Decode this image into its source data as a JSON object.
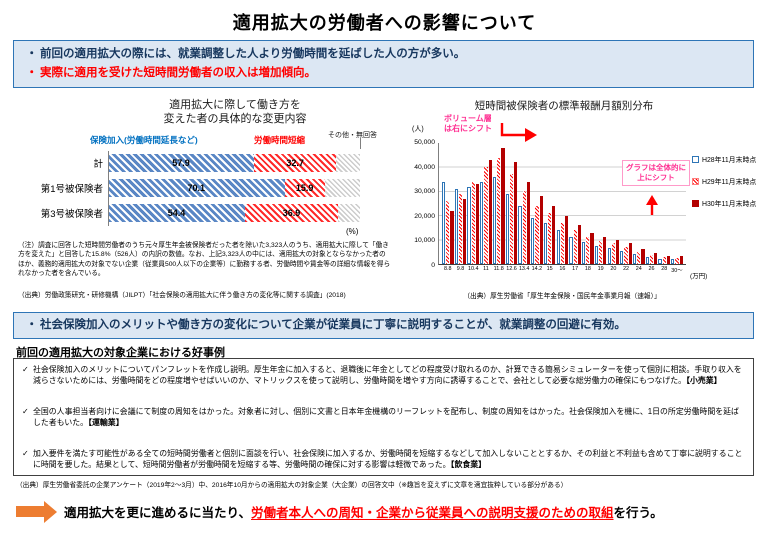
{
  "page": {
    "title": "適用拡大の労働者への影響について"
  },
  "colors": {
    "box_border_blue": "#2e75b6",
    "box_bg_blue": "#dce7f3",
    "accent_red": "#ff0000",
    "accent_blue": "#0070c0",
    "annotation_pink": "#ff2f92",
    "arrow_orange": "#ed7d31",
    "bar_dark_red": "#b30000"
  },
  "summary_box1": {
    "bullet1": "前回の適用拡大の際には、就業調整した人より労働時間を延ばした人の方が多い。",
    "bullet2": "実際に適用を受けた短時間労働者の収入は増加傾向。"
  },
  "left_chart": {
    "title_line1": "適用拡大に際して働き方を",
    "title_line2": "変えた者の具体的な変更内容",
    "legend_blue": "保険加入(労働時間延長など)",
    "legend_red": "労働時間短縮",
    "legend_other": "その他・無回答",
    "unit": "(%)",
    "note": "（注）調査に回答した短時間労働者のうち元々厚生年金被保険者だった者を除いた3,323人のうち、適用拡大に際して「働き方を変えた」と回答した15.8%（526人）の内訳の数値。なお、上記3,323人の中には、適用拡大の対象とならなかった者のほか、義務的適用拡大の対象でない企業（従業員500人以下の企業等）に勤務する者、労働時間や賃金等の詳細な情報を得られなかった者を含んでいる。",
    "source": "（出典）労働政策研究・研修機構（JILPT）「社会保険の適用拡大に伴う働き方の変化等に関する調査」(2018)"
  },
  "right_chart": {
    "title": "短時間被保険者の標準報酬月額別分布",
    "y_unit": "(人)",
    "x_unit": "(万円)",
    "ytick_labels": [
      "50,000",
      "40,000",
      "30,000",
      "20,000",
      "10,000",
      "0"
    ],
    "annotation1": "ボリューム層\nは右にシフト",
    "annotation2": "グラフは全体的に\n上にシフト",
    "source": "（出典）厚生労働省「厚生年金保険・国民年金事業月報（速報）」"
  },
  "summary_box2": {
    "bullet": "社会保険加入のメリットや働き方の変化について企業が従業員に丁寧に説明することが、就業調整の回避に有効。"
  },
  "examples": {
    "title": "前回の適用拡大の対象企業における好事例",
    "items": [
      {
        "text": "社会保険加入のメリットについてパンフレットを作成し説明。厚生年金に加入すると、退職後に年金としてどの程度受け取れるのか、計算できる簡易シミュレーターを使って個別に相談。手取り収入を減らさないためには、労働時間をどの程度増やせばいいのか、マトリックスを使って説明し、労働時間を増やす方向に誘導することで、会社として必要な総労働力の確保にもつなげた。",
        "category": "【小売業】"
      },
      {
        "text": "全国の人事担当者向けに会議にて制度の周知をはかった。対象者に対し、個別に文書と日本年金機構のリーフレットを配布し、制度の周知をはかった。社会保険加入を機に、1日の所定労働時間を延ばした者もいた。",
        "category": "【運輸業】"
      },
      {
        "text": "加入要件を満たす可能性がある全ての短時間労働者と個別に面談を行い、社会保険に加入するか、労働時間を短縮するなどして加入しないこととするか、その利益と不利益も含めて丁寧に説明することに時間を要した。結果として、短時間労働者が労働時間を短縮する等、労働時間の確保に対する影響は軽微であった。",
        "category": "【飲食業】"
      }
    ],
    "source": "（出典）厚生労働省委託の企業アンケート（2019年2～3月）中、2016年10月からの適用拡大の対象企業（大企業）の回答文中（※趣旨を変えずに文章を適宜抜粋している部分がある）"
  },
  "conclusion": {
    "prefix": "適用拡大を更に進めるに当たり、",
    "highlight": "労働者本人への周知・企業から従業員への説明支援のための取組",
    "suffix": "を行う。"
  },
  "chart_data": [
    {
      "type": "bar",
      "orientation": "horizontal",
      "stacked": true,
      "title": "適用拡大に際して働き方を変えた者の具体的な変更内容",
      "categories": [
        "計",
        "第1号被保険者",
        "第3号被保険者"
      ],
      "series": [
        {
          "name": "保険加入(労働時間延長など)",
          "values": [
            57.9,
            70.1,
            54.4
          ],
          "color": "#2e75b6"
        },
        {
          "name": "労働時間短縮",
          "values": [
            32.7,
            15.9,
            36.9
          ],
          "color": "#ff0000"
        },
        {
          "name": "その他・無回答",
          "values": [
            9.4,
            14.0,
            8.7
          ],
          "color": "#d9d9d9"
        }
      ],
      "xlim": [
        0,
        100
      ],
      "xlabel": "(%)"
    },
    {
      "type": "bar",
      "title": "短時間被保険者の標準報酬月額別分布",
      "categories": [
        "8.8",
        "9.8",
        "10.4",
        "11",
        "11.8",
        "12.6",
        "13.4",
        "14.2",
        "15",
        "16",
        "17",
        "18",
        "19",
        "20",
        "22",
        "24",
        "26",
        "28",
        "30～"
      ],
      "series": [
        {
          "name": "H28年11月末時点",
          "pattern": "outline",
          "color": "#2e75b6",
          "values": [
            34000,
            31000,
            32000,
            34000,
            36000,
            29000,
            24000,
            19000,
            17000,
            14000,
            11000,
            9000,
            7500,
            6500,
            5500,
            4000,
            3000,
            2200,
            2000
          ]
        },
        {
          "name": "H29年11月末時点",
          "pattern": "stripe",
          "color": "#ff0000",
          "values": [
            26000,
            29000,
            34000,
            40000,
            44000,
            37000,
            30000,
            24000,
            21000,
            17000,
            14000,
            11000,
            9500,
            8500,
            7000,
            5000,
            3800,
            2800,
            2600
          ]
        },
        {
          "name": "H30年11月末時点",
          "pattern": "solid",
          "color": "#b30000",
          "values": [
            22000,
            27000,
            33000,
            43000,
            48000,
            42000,
            34000,
            28000,
            24000,
            20000,
            16000,
            13000,
            11000,
            10000,
            8500,
            6000,
            4500,
            3400,
            3200
          ]
        }
      ],
      "ylabel": "(人)",
      "xlabel": "(万円)",
      "ylim": [
        0,
        50000
      ],
      "yticks": [
        0,
        10000,
        20000,
        30000,
        40000,
        50000
      ],
      "legend_position": "right"
    }
  ]
}
